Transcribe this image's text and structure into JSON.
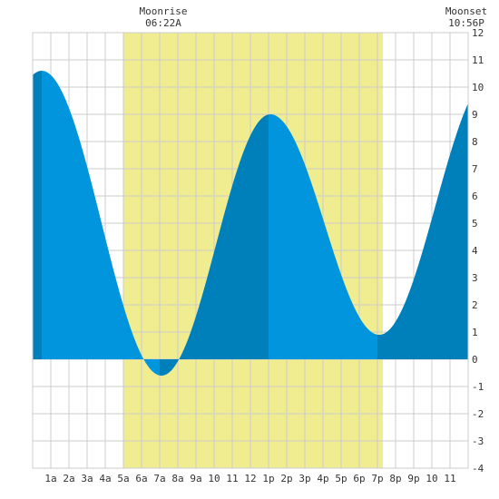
{
  "chart_data": {
    "type": "area",
    "moonrise": {
      "label": "Moonrise",
      "time": "06:22A",
      "hour": 6.367
    },
    "moonset": {
      "label": "Moonset",
      "time": "10:56P",
      "hour": 22.933
    },
    "daylight": {
      "start_hour": 5.0,
      "end_hour": 19.3
    },
    "x_tick_labels": [
      "1a",
      "2a",
      "3a",
      "4a",
      "5a",
      "6a",
      "7a",
      "8a",
      "9a",
      "10",
      "11",
      "12",
      "1p",
      "2p",
      "3p",
      "4p",
      "5p",
      "6p",
      "7p",
      "8p",
      "9p",
      "10",
      "11"
    ],
    "xlim": [
      0,
      24
    ],
    "ylim": [
      -4,
      12
    ],
    "y_ticks": [
      -4,
      -3,
      -2,
      -1,
      0,
      1,
      2,
      3,
      4,
      5,
      6,
      7,
      8,
      9,
      10,
      11,
      12
    ],
    "grid": true,
    "tide_extremes": [
      {
        "type": "high",
        "hour": 0.5,
        "height": 10.6
      },
      {
        "type": "low",
        "hour": 7.1,
        "height": -0.6
      },
      {
        "type": "high",
        "hour": 13.1,
        "height": 9.0
      },
      {
        "type": "low",
        "hour": 19.1,
        "height": 0.9
      }
    ],
    "series_end": {
      "hour": 24,
      "height": 9.2
    },
    "hour_shading": [
      {
        "from": 0,
        "to": 0.5,
        "tone": "dark"
      },
      {
        "from": 0.5,
        "to": 7.0,
        "tone": "light"
      },
      {
        "from": 7.0,
        "to": 8.0,
        "tone": "dark"
      },
      {
        "from": 8.0,
        "to": 13.0,
        "tone": "dark"
      },
      {
        "from": 13.0,
        "to": 19.0,
        "tone": "light"
      },
      {
        "from": 19.0,
        "to": 24.0,
        "tone": "dark"
      }
    ],
    "colors": {
      "tide_light": "#0095dd",
      "tide_dark": "#0080bb",
      "daylight": "#f0ec90",
      "grid": "#cccccc",
      "text": "#333333"
    }
  }
}
